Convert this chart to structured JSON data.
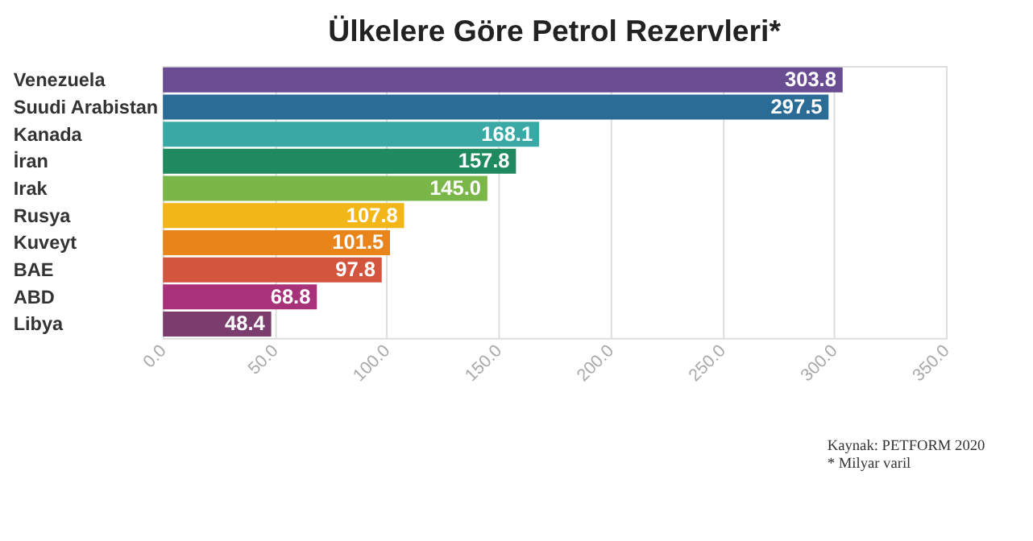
{
  "chart_data": {
    "type": "bar",
    "orientation": "horizontal",
    "title": "Ülkelere Göre Petrol Rezervleri*",
    "categories": [
      "Venezuela",
      "Suudi Arabistan",
      "Kanada",
      "İran",
      "Irak",
      "Rusya",
      "Kuveyt",
      "BAE",
      "ABD",
      "Libya"
    ],
    "values": [
      303.8,
      297.5,
      168.1,
      157.8,
      145.0,
      107.8,
      101.5,
      97.8,
      68.8,
      48.4
    ],
    "value_labels": [
      "303.8",
      "297.5",
      "168.1",
      "157.8",
      "145.0",
      "107.8",
      "101.5",
      "97.8",
      "68.8",
      "48.4"
    ],
    "colors": [
      "#6a4c93",
      "#2b6c97",
      "#3aa8a4",
      "#1f8a5f",
      "#7ab648",
      "#f2b619",
      "#e8841a",
      "#d4553d",
      "#a8327a",
      "#7a3d6e"
    ],
    "xlim": [
      0,
      350
    ],
    "xticks": [
      {
        "value": 0,
        "label": "0.0"
      },
      {
        "value": 50,
        "label": "50.0"
      },
      {
        "value": 100,
        "label": "100.0"
      },
      {
        "value": 150,
        "label": "150.0"
      },
      {
        "value": 200,
        "label": "200.0"
      },
      {
        "value": 250,
        "label": "250.0"
      },
      {
        "value": 300,
        "label": "300.0"
      },
      {
        "value": 350,
        "label": "350.0"
      }
    ],
    "grid": "x",
    "annotations": [
      "Kaynak: PETFORM 2020",
      "* Milyar varil"
    ]
  }
}
